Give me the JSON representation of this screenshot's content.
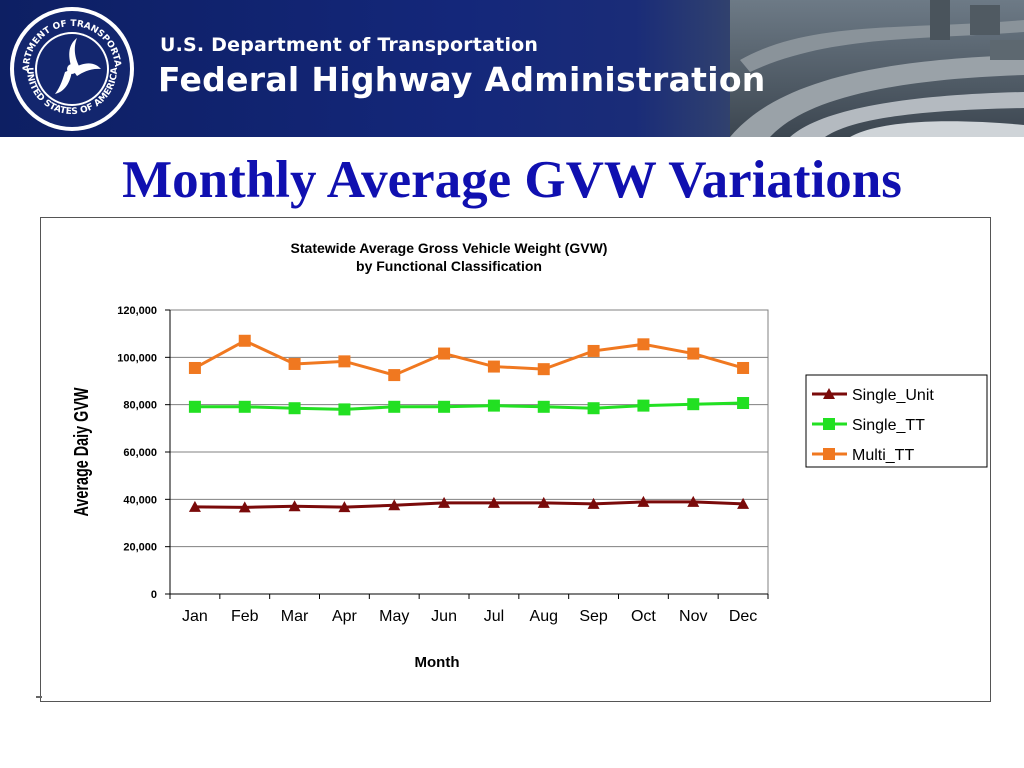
{
  "header": {
    "department": "U.S. Department of Transportation",
    "agency": "Federal Highway Administration",
    "seal_text": "DEPARTMENT OF TRANSPORTATION • UNITED STATES OF AMERICA"
  },
  "slide_title": "Monthly Average GVW Variations",
  "colors": {
    "banner": "#14277a",
    "title": "#1010b0",
    "single_unit": "#7a0a0a",
    "single_tt": "#22e022",
    "multi_tt": "#f07820"
  },
  "chart_data": {
    "type": "line",
    "title_line1": "Statewide Average Gross Vehicle Weight (GVW)",
    "title_line2": "by Functional Classification",
    "xlabel": "Month",
    "ylabel": "Average Daiy GVW",
    "categories": [
      "Jan",
      "Feb",
      "Mar",
      "Apr",
      "May",
      "Jun",
      "Jul",
      "Aug",
      "Sep",
      "Oct",
      "Nov",
      "Dec"
    ],
    "ylim": [
      0,
      120000
    ],
    "yticks": [
      0,
      20000,
      40000,
      60000,
      80000,
      100000,
      120000
    ],
    "ytick_labels": [
      "0",
      "20,000",
      "40,000",
      "60,000",
      "80,000",
      "100,000",
      "120,000"
    ],
    "grid": "horizontal",
    "legend_position": "right",
    "series": [
      {
        "name": "Single_Unit",
        "marker": "triangle",
        "color": "#7a0a0a",
        "values": [
          36800,
          36600,
          37100,
          36700,
          37500,
          38500,
          38500,
          38500,
          38100,
          38900,
          38900,
          38100
        ]
      },
      {
        "name": "Single_TT",
        "marker": "square",
        "color": "#22e022",
        "values": [
          79100,
          79100,
          78500,
          78000,
          79100,
          79100,
          79600,
          79100,
          78500,
          79600,
          80200,
          80700
        ]
      },
      {
        "name": "Multi_TT",
        "marker": "square",
        "color": "#f07820",
        "values": [
          95500,
          107000,
          97200,
          98300,
          92500,
          101600,
          96100,
          95000,
          102700,
          105500,
          101600,
          95500
        ]
      }
    ]
  }
}
